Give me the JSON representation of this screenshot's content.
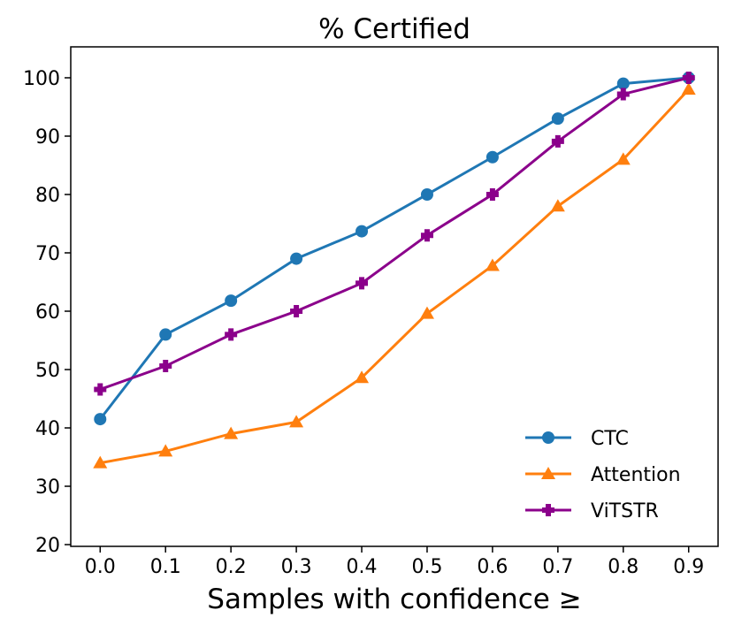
{
  "chart_data": {
    "type": "line",
    "title": "% Certified",
    "xlabel": "Samples with confidence ≥",
    "ylabel": "",
    "x": [
      0.0,
      0.1,
      0.2,
      0.3,
      0.4,
      0.5,
      0.6,
      0.7,
      0.8,
      0.9
    ],
    "x_tick_labels": [
      "0.0",
      "0.1",
      "0.2",
      "0.3",
      "0.4",
      "0.5",
      "0.6",
      "0.7",
      "0.8",
      "0.9"
    ],
    "y_ticks": [
      20,
      30,
      40,
      50,
      60,
      70,
      80,
      90,
      100
    ],
    "xlim": [
      -0.045,
      0.945
    ],
    "ylim": [
      19.7,
      105.3
    ],
    "grid": false,
    "legend_placement": "bottom-right",
    "series": [
      {
        "name": "CTC",
        "color": "#1f77b4",
        "marker": "circle",
        "values": [
          41.5,
          56,
          61.8,
          69,
          73.7,
          80,
          86.4,
          93,
          99,
          100
        ]
      },
      {
        "name": "Attention",
        "color": "#ff7f0e",
        "marker": "triangle",
        "values": [
          34,
          36,
          39,
          41,
          48.6,
          59.6,
          67.8,
          78,
          86,
          98
        ]
      },
      {
        "name": "ViTSTR",
        "color": "#8b008b",
        "marker": "plus",
        "values": [
          46.6,
          50.6,
          56,
          60,
          64.8,
          73,
          80,
          89.1,
          97.2,
          100
        ]
      }
    ]
  }
}
